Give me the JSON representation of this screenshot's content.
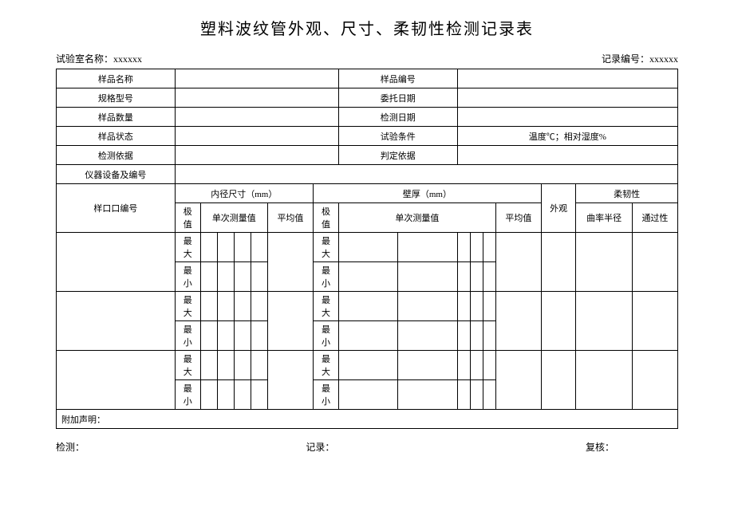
{
  "title": "塑料波纹管外观、尺寸、柔韧性检测记录表",
  "header": {
    "lab_label": "试验室名称：",
    "lab_value": "xxxxxx",
    "record_label": "记录编号：",
    "record_value": "xxxxxx"
  },
  "info_rows": {
    "sample_name": "样品名称",
    "sample_no": "样品编号",
    "spec_model": "规格型号",
    "entrust_date": "委托日期",
    "sample_qty": "样品数量",
    "test_date": "检测日期",
    "sample_status": "样品状态",
    "test_condition": "试验条件",
    "temp_humidity": "温度℃；相对湿度%",
    "test_basis": "检测依据",
    "judge_basis": "判定依据",
    "equipment": "仪器设备及编号"
  },
  "columns": {
    "sample_id": "样口口编号",
    "inner_dia": "内径尺寸（mm）",
    "wall_thick": "壁厚（mm）",
    "appearance": "外观",
    "flexibility": "柔韧性",
    "extreme": "极值",
    "single_measure": "单次测量值",
    "average": "平均值",
    "curve_radius": "曲率半径",
    "passability": "通过性",
    "max": "最大",
    "min": "最小"
  },
  "remark": "附加声明：",
  "footer": {
    "test": "检测：",
    "record": "记录：",
    "review": "复核："
  }
}
